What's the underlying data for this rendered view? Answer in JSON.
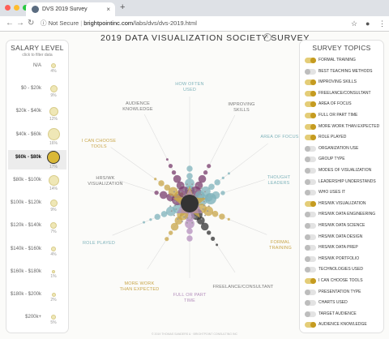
{
  "browser": {
    "tab_title": "DVS 2019 Survey",
    "tab_close": "×",
    "new_tab": "+",
    "not_secure": "Not Secure",
    "url_domain": "brightpointinc.com",
    "url_path": "/labs/dvs/dvs-2019.html",
    "back": "←",
    "forward": "→",
    "reload": "↻",
    "info": "ⓘ",
    "star": "☆",
    "profile": "●",
    "menu": "⋮",
    "dot_colors": [
      "#ff5f57",
      "#febc2e",
      "#28c840"
    ]
  },
  "page_title": "2019 DATA VISUALIZATION SOCIETY SURVEY",
  "info_glyph": "i",
  "salary_panel": {
    "title": "SALARY LEVEL",
    "subtitle": "click to filter data",
    "levels": [
      {
        "label": "N/A",
        "pct": "4%",
        "size": 6,
        "selected": false
      },
      {
        "label": "$0 - $20k",
        "pct": "9%",
        "size": 9,
        "selected": false
      },
      {
        "label": "$20k - $40k",
        "pct": "12%",
        "size": 11,
        "selected": false
      },
      {
        "label": "$40k - $60k",
        "pct": "16%",
        "size": 15,
        "selected": false
      },
      {
        "label": "$60k - $80k",
        "pct": "17%",
        "size": 16,
        "selected": true
      },
      {
        "label": "$80k - $100k",
        "pct": "14%",
        "size": 13,
        "selected": false
      },
      {
        "label": "$100k - $120k",
        "pct": "9%",
        "size": 9,
        "selected": false
      },
      {
        "label": "$120k - $140k",
        "pct": "7%",
        "size": 8,
        "selected": false
      },
      {
        "label": "$140k - $160k",
        "pct": "4%",
        "size": 6,
        "selected": false
      },
      {
        "label": "$160k - $180k",
        "pct": "1%",
        "size": 4,
        "selected": false
      },
      {
        "label": "$180k - $200k",
        "pct": "2%",
        "size": 5,
        "selected": false
      },
      {
        "label": "$200k+",
        "pct": "5%",
        "size": 6,
        "selected": false
      }
    ]
  },
  "radial": {
    "labels": [
      {
        "text": "HOW OFTEN|USED",
        "color": "#7fb3bb"
      },
      {
        "text": "IMPROVING|SKILLS",
        "color": "#777777"
      },
      {
        "text": "AREA OF FOCUS",
        "color": "#7fb3bb"
      },
      {
        "text": "THOUGHT|LEADERS",
        "color": "#7fb3bb"
      },
      {
        "text": "FORMAL|TRAINING",
        "color": "#c8a548"
      },
      {
        "text": "FREELANCE/CONSULTANT",
        "color": "#777777"
      },
      {
        "text": "FULL OR PART|TIME",
        "color": "#b48fbc"
      },
      {
        "text": "MORE WORK|THAN EXPECTED",
        "color": "#c8a548"
      },
      {
        "text": "ROLE PLAYED",
        "color": "#7fb3bb"
      },
      {
        "text": "HRS/WK|VISUALIZATION",
        "color": "#777777"
      },
      {
        "text": "I CAN CHOOSE|TOOLS",
        "color": "#c8a548"
      },
      {
        "text": "AUDIENCE|KNOWLEDGE",
        "color": "#777777"
      }
    ]
  },
  "topics_panel": {
    "title": "SURVEY TOPICS",
    "items": [
      {
        "label": "FORMAL TRAINING",
        "on": true
      },
      {
        "label": "BEST TEACHING METHODS",
        "on": false
      },
      {
        "label": "IMPROVING SKILLS",
        "on": true
      },
      {
        "label": "FREELANCE/CONSULTANT",
        "on": true
      },
      {
        "label": "AREA OF FOCUS",
        "on": true
      },
      {
        "label": "FULL OR PART TIME",
        "on": true
      },
      {
        "label": "MORE WORK THAN EXPECTED",
        "on": true
      },
      {
        "label": "ROLE PLAYED",
        "on": true
      },
      {
        "label": "ORGANIZATION USE",
        "on": false
      },
      {
        "label": "GROUP TYPE",
        "on": false
      },
      {
        "label": "MODES OF VISUALIZATION",
        "on": false
      },
      {
        "label": "LEADERSHIP UNDERSTANDS",
        "on": false
      },
      {
        "label": "WHO USES IT",
        "on": false
      },
      {
        "label": "HRS/WK VISUALIZATION",
        "on": true
      },
      {
        "label": "HRS/WK DATA ENGINEERING",
        "on": false
      },
      {
        "label": "HRS/WK DATA SCIENCE",
        "on": false
      },
      {
        "label": "HRS/WK DATA DESIGN",
        "on": false
      },
      {
        "label": "HRS/WK DATA PREP",
        "on": false
      },
      {
        "label": "HRS/WK PORTFOLIO",
        "on": false
      },
      {
        "label": "TECHNOLOGIES USED",
        "on": false
      },
      {
        "label": "I CAN CHOOSE TOOLS",
        "on": true
      },
      {
        "label": "PRESENTATION TYPE",
        "on": false
      },
      {
        "label": "CHARTS USED",
        "on": false
      },
      {
        "label": "TARGET AUDIENCE",
        "on": false
      },
      {
        "label": "AUDIENCE KNOWLEDGE",
        "on": true
      }
    ]
  },
  "footer": "© 2019 THOMAS SANDERS & · BRIGHTPOINT CONSULTING INC",
  "colors": {
    "gold": "#c8a548",
    "teal": "#7fb3bb",
    "purple": "#7a3d6e",
    "lavender": "#b48fbc",
    "dark": "#333333"
  }
}
